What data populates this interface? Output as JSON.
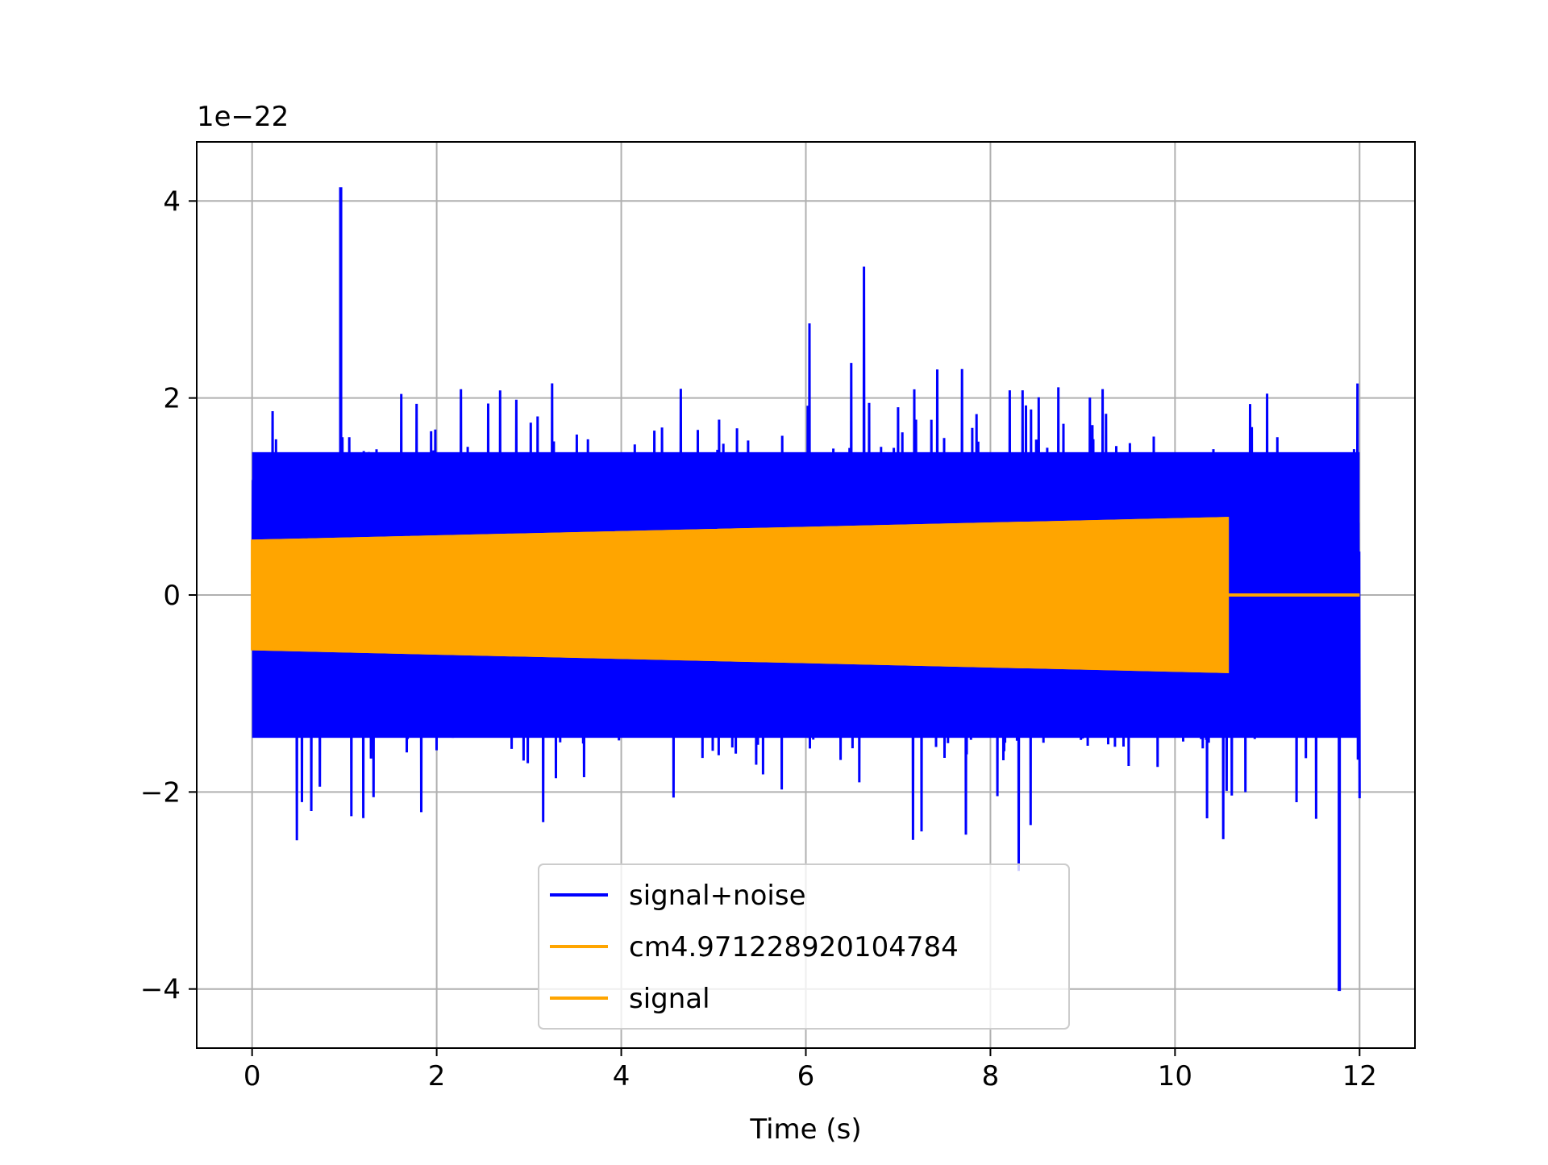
{
  "chart_data": {
    "type": "line",
    "title": "",
    "xlabel": "Time (s)",
    "ylabel": "",
    "y_offset_label": "1e−22",
    "xlim": [
      -0.6,
      12.6
    ],
    "ylim": [
      -4.6,
      4.6
    ],
    "x_ticks": [
      0,
      2,
      4,
      6,
      8,
      10,
      12
    ],
    "x_tick_labels": [
      "0",
      "2",
      "4",
      "6",
      "8",
      "10",
      "12"
    ],
    "y_ticks": [
      -4,
      -2,
      0,
      2,
      4
    ],
    "y_tick_labels": [
      "−4",
      "−2",
      "0",
      "2",
      "4"
    ],
    "grid": true,
    "legend_position": "lower-center",
    "series": [
      {
        "name": "signal+noise",
        "color": "#0000ff",
        "x_range": [
          0,
          12
        ],
        "typical_envelope": 1.5,
        "peak_max": 4.14,
        "peak_min": -4.02
      },
      {
        "name": "cm4.971228920104784",
        "color": "#ffa500",
        "x": [
          0,
          10.57,
          10.57,
          12
        ],
        "envelope": [
          0.55,
          0.78,
          0,
          0
        ]
      },
      {
        "name": "signal",
        "color": "#ffa500",
        "x": [
          0,
          10.57,
          10.57,
          12
        ],
        "envelope": [
          0.55,
          0.78,
          0,
          0
        ]
      }
    ]
  }
}
